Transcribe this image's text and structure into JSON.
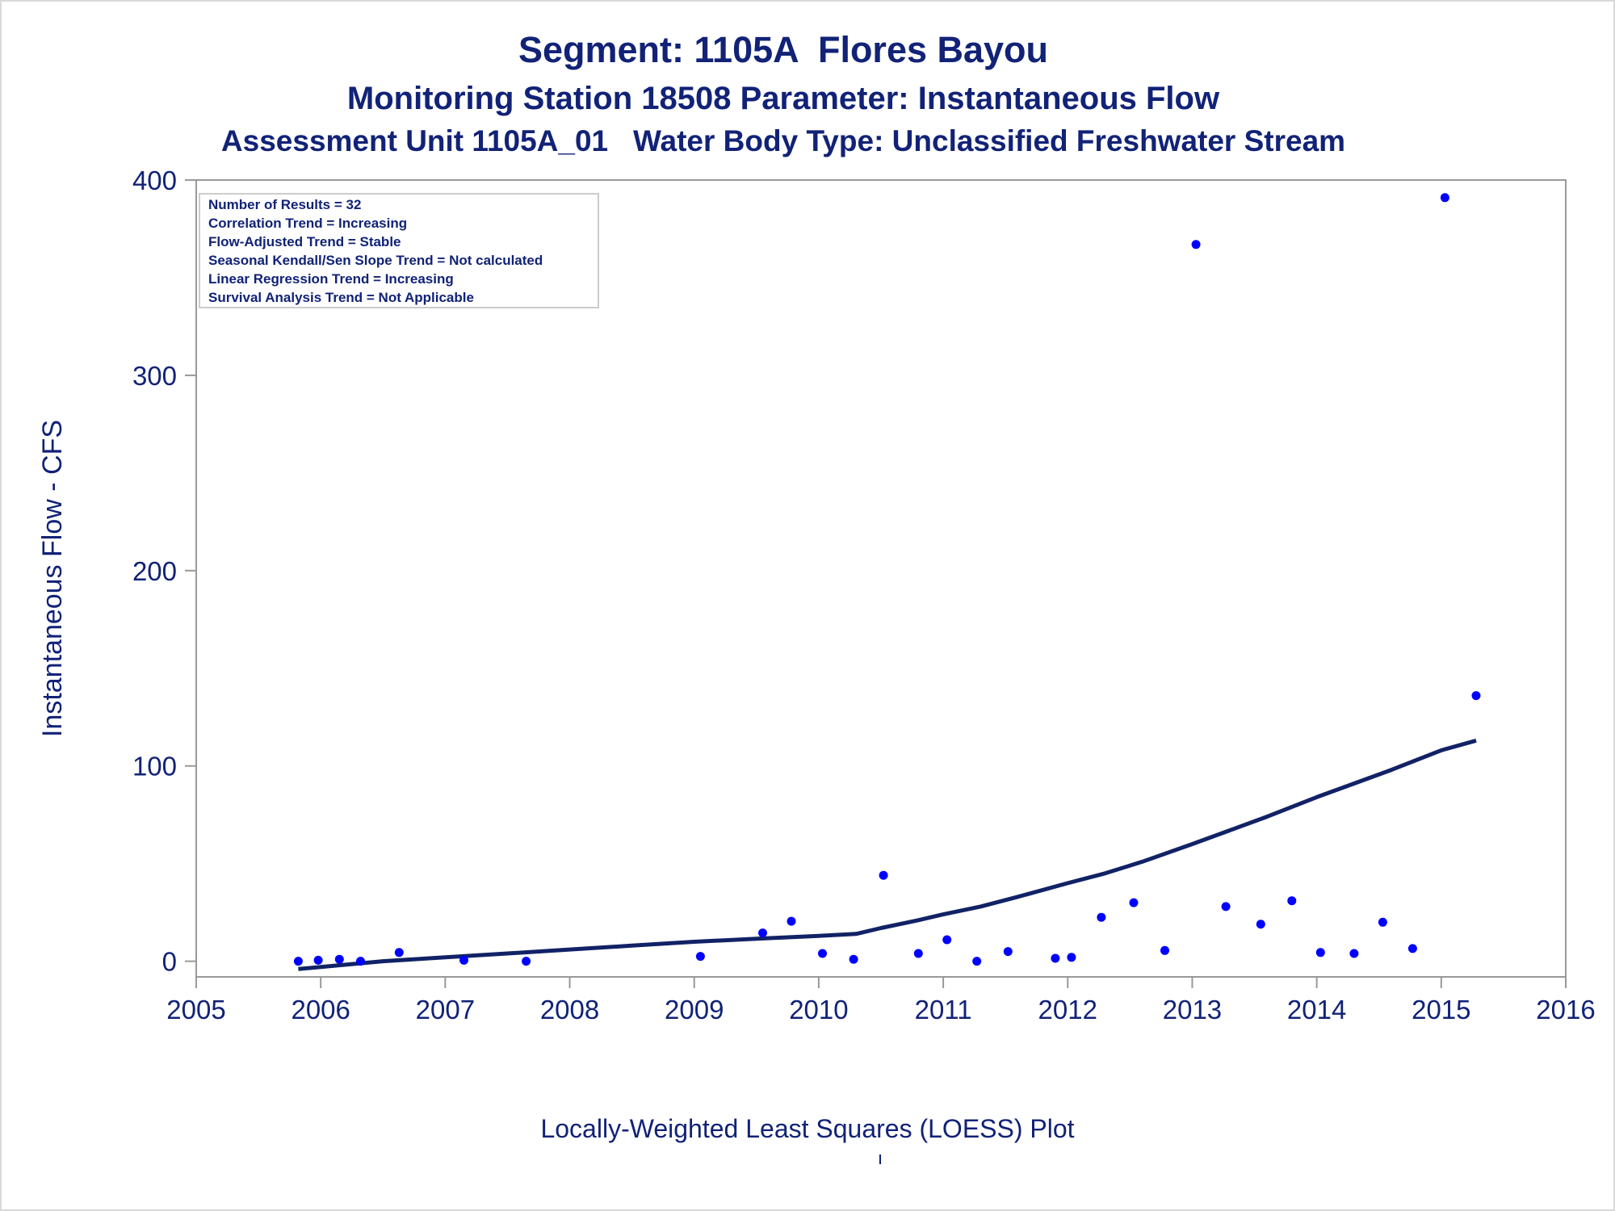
{
  "titles": {
    "line1": "Segment: 1105A  Flores Bayou",
    "line2": "Monitoring Station 18508 Parameter: Instantaneous Flow",
    "line3": "Assessment Unit 1105A_01   Water Body Type: Unclassified Freshwater Stream"
  },
  "footnote": "Locally-Weighted Least Squares (LOESS) Plot",
  "stats_box": [
    "Number of Results = 32",
    "Correlation Trend = Increasing",
    "Flow-Adjusted Trend = Stable",
    "Seasonal Kendall/Sen Slope Trend = Not calculated",
    "Linear Regression Trend = Increasing",
    "Survival Analysis Trend = Not Applicable"
  ],
  "colors": {
    "text": "#112277",
    "points": "#0000ff",
    "loess_line": "#112266",
    "axis": "#999999"
  },
  "chart_data": {
    "type": "scatter",
    "ylabel": "Instantaneous Flow - CFS",
    "xlim": [
      2005,
      2016
    ],
    "ylim": [
      -8,
      400
    ],
    "x_ticks": [
      2005,
      2006,
      2007,
      2008,
      2009,
      2010,
      2011,
      2012,
      2013,
      2014,
      2015,
      2016
    ],
    "y_ticks": [
      0,
      100,
      200,
      300,
      400
    ],
    "grid": false,
    "series": [
      {
        "kind": "points",
        "x": [
          2005.82,
          2005.98,
          2006.15,
          2006.32,
          2006.63,
          2007.15,
          2007.65,
          2009.05,
          2009.55,
          2009.78,
          2010.03,
          2010.28,
          2010.52,
          2010.8,
          2011.03,
          2011.27,
          2011.52,
          2011.9,
          2012.03,
          2012.27,
          2012.53,
          2012.78,
          2013.03,
          2013.27,
          2013.55,
          2013.8,
          2014.03,
          2014.3,
          2014.53,
          2014.77,
          2015.03,
          2015.28
        ],
        "y": [
          0,
          0.5,
          1,
          0,
          4.5,
          0.5,
          0,
          2.5,
          14.5,
          20.5,
          4,
          1,
          44,
          4,
          11,
          0,
          5,
          1.5,
          2,
          22.5,
          30,
          5.5,
          367,
          28,
          19,
          31,
          4.5,
          4,
          20,
          6.5,
          391,
          136
        ]
      },
      {
        "kind": "loess",
        "x": [
          2005.82,
          2006.5,
          2007.0,
          2007.5,
          2008.0,
          2008.5,
          2009.0,
          2009.5,
          2010.0,
          2010.3,
          2010.5,
          2010.8,
          2011.0,
          2011.3,
          2011.6,
          2012.0,
          2012.3,
          2012.6,
          2013.0,
          2013.3,
          2013.6,
          2014.0,
          2014.3,
          2014.6,
          2015.0,
          2015.28
        ],
        "y": [
          -4,
          0,
          2,
          4,
          6,
          8,
          10,
          11.5,
          13,
          14,
          17,
          21,
          24,
          28,
          33,
          40,
          45,
          51,
          60,
          67,
          74,
          84,
          91,
          98,
          108,
          113
        ]
      }
    ]
  }
}
